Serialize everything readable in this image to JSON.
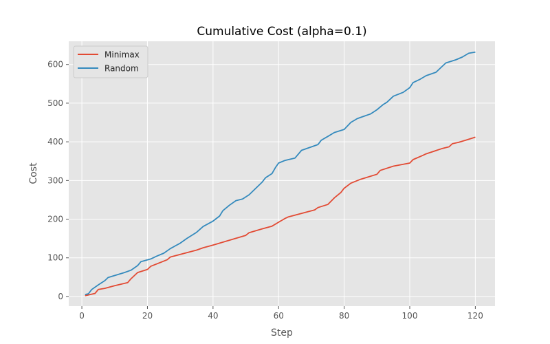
{
  "chart_data": {
    "type": "line",
    "title": "Cumulative Cost (alpha=0.1)",
    "xlabel": "Step",
    "ylabel": "Cost",
    "xlim": [
      -4,
      126
    ],
    "ylim": [
      -25,
      660
    ],
    "xticks": [
      0,
      20,
      40,
      60,
      80,
      100,
      120
    ],
    "yticks": [
      0,
      100,
      200,
      300,
      400,
      500,
      600
    ],
    "grid": true,
    "legend_position": "top-left",
    "series": [
      {
        "name": "Minimax",
        "color": "#e24a33",
        "anchors": [
          [
            1,
            2
          ],
          [
            4,
            8
          ],
          [
            5,
            18
          ],
          [
            7,
            21
          ],
          [
            10,
            28
          ],
          [
            14,
            36
          ],
          [
            15,
            46
          ],
          [
            17,
            62
          ],
          [
            20,
            70
          ],
          [
            21,
            78
          ],
          [
            26,
            95
          ],
          [
            27,
            102
          ],
          [
            35,
            120
          ],
          [
            37,
            126
          ],
          [
            40,
            133
          ],
          [
            50,
            158
          ],
          [
            51,
            165
          ],
          [
            55,
            175
          ],
          [
            58,
            182
          ],
          [
            60,
            192
          ],
          [
            62,
            202
          ],
          [
            63,
            206
          ],
          [
            71,
            224
          ],
          [
            72,
            230
          ],
          [
            75,
            238
          ],
          [
            77,
            255
          ],
          [
            79,
            269
          ],
          [
            80,
            280
          ],
          [
            82,
            293
          ],
          [
            85,
            303
          ],
          [
            90,
            316
          ],
          [
            91,
            326
          ],
          [
            95,
            337
          ],
          [
            100,
            345
          ],
          [
            101,
            354
          ],
          [
            104,
            365
          ],
          [
            105,
            369
          ],
          [
            110,
            383
          ],
          [
            112,
            387
          ],
          [
            113,
            395
          ],
          [
            115,
            399
          ],
          [
            117,
            404
          ],
          [
            120,
            412
          ]
        ]
      },
      {
        "name": "Random",
        "color": "#348abd",
        "anchors": [
          [
            1,
            5
          ],
          [
            2,
            7
          ],
          [
            3,
            18
          ],
          [
            5,
            30
          ],
          [
            7,
            41
          ],
          [
            8,
            49
          ],
          [
            13,
            62
          ],
          [
            15,
            68
          ],
          [
            17,
            80
          ],
          [
            18,
            90
          ],
          [
            21,
            97
          ],
          [
            23,
            105
          ],
          [
            25,
            112
          ],
          [
            27,
            124
          ],
          [
            30,
            138
          ],
          [
            32,
            150
          ],
          [
            35,
            166
          ],
          [
            37,
            181
          ],
          [
            40,
            195
          ],
          [
            42,
            208
          ],
          [
            43,
            222
          ],
          [
            45,
            236
          ],
          [
            47,
            248
          ],
          [
            49,
            252
          ],
          [
            51,
            263
          ],
          [
            55,
            296
          ],
          [
            56,
            307
          ],
          [
            58,
            318
          ],
          [
            59,
            333
          ],
          [
            60,
            345
          ],
          [
            62,
            352
          ],
          [
            65,
            358
          ],
          [
            67,
            378
          ],
          [
            72,
            393
          ],
          [
            73,
            404
          ],
          [
            75,
            414
          ],
          [
            77,
            424
          ],
          [
            80,
            432
          ],
          [
            82,
            450
          ],
          [
            84,
            460
          ],
          [
            86,
            466
          ],
          [
            88,
            472
          ],
          [
            90,
            483
          ],
          [
            92,
            497
          ],
          [
            93,
            502
          ],
          [
            95,
            518
          ],
          [
            98,
            528
          ],
          [
            100,
            540
          ],
          [
            101,
            553
          ],
          [
            103,
            561
          ],
          [
            105,
            571
          ],
          [
            108,
            580
          ],
          [
            109,
            588
          ],
          [
            111,
            604
          ],
          [
            114,
            612
          ],
          [
            116,
            619
          ],
          [
            118,
            629
          ],
          [
            120,
            632
          ]
        ]
      }
    ]
  }
}
